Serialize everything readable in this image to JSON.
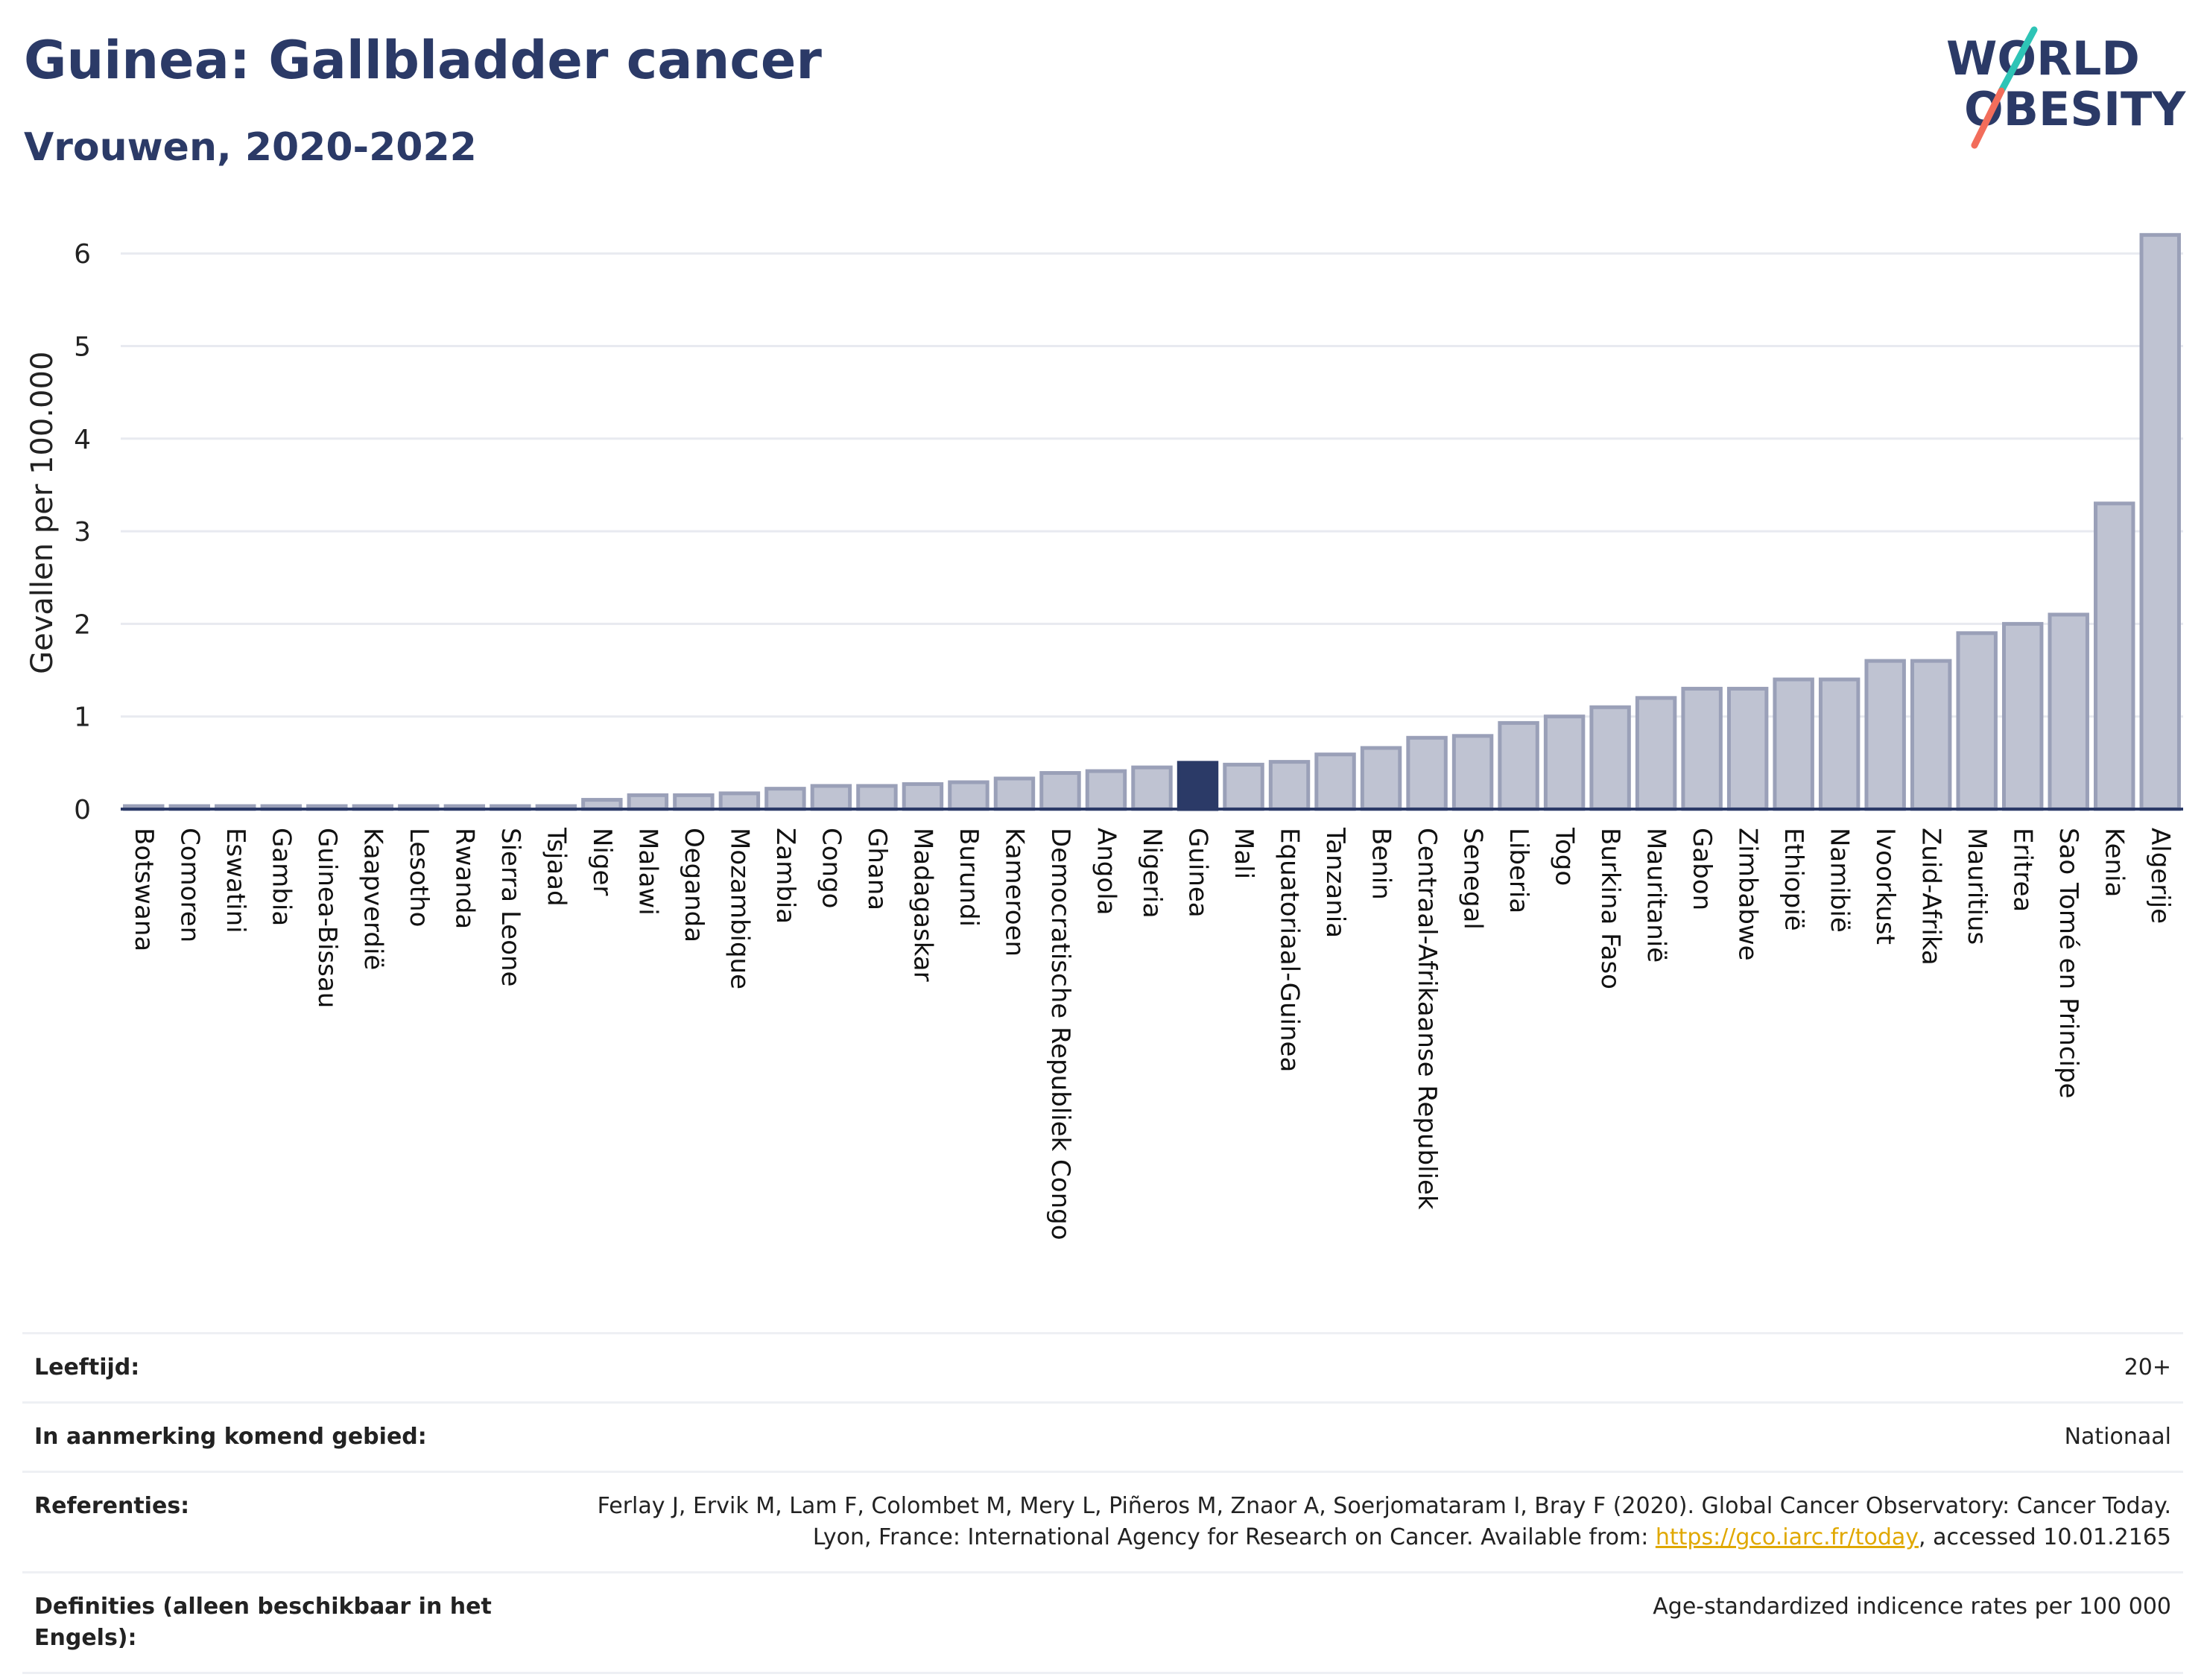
{
  "header": {
    "title": "Guinea: Gallbladder cancer",
    "subtitle": "Vrouwen, 2020-2022"
  },
  "logo": {
    "line1": "WORLD",
    "line2": "OBESITY",
    "colors": {
      "text": "#2b3a67",
      "slash_top": "#2ec4b6",
      "slash_bottom": "#f26d5b"
    }
  },
  "chart_data": {
    "type": "bar",
    "ylabel": "Gevallen per 100.000",
    "ylim": [
      0,
      6.4
    ],
    "yticks": [
      0,
      1,
      2,
      3,
      4,
      5,
      6
    ],
    "grid": true,
    "highlight": "Guinea",
    "colors": {
      "bar": "#bfc3d2",
      "bar_border": "#9aa0b8",
      "highlight": "#2b3a67",
      "axis": "#2b3a67",
      "grid": "#e8eaf0"
    },
    "categories": [
      "Botswana",
      "Comoren",
      "Eswatini",
      "Gambia",
      "Guinea-Bissau",
      "Kaapverdië",
      "Lesotho",
      "Rwanda",
      "Sierra Leone",
      "Tsjaad",
      "Niger",
      "Malawi",
      "Oeganda",
      "Mozambique",
      "Zambia",
      "Congo",
      "Ghana",
      "Madagaskar",
      "Burundi",
      "Kameroen",
      "Democratische Republiek Congo",
      "Angola",
      "Nigeria",
      "Guinea",
      "Mali",
      "Equatoriaal-Guinea",
      "Tanzania",
      "Benin",
      "Centraal-Afrikaanse Republiek",
      "Senegal",
      "Liberia",
      "Togo",
      "Burkina Faso",
      "Mauritanië",
      "Gabon",
      "Zimbabwe",
      "Ethiopië",
      "Namibië",
      "Ivoorkust",
      "Zuid-Afrika",
      "Mauritius",
      "Eritrea",
      "Sao Tomé en Principe",
      "Kenia",
      "Algerije"
    ],
    "values": [
      0.03,
      0.03,
      0.03,
      0.03,
      0.03,
      0.03,
      0.03,
      0.03,
      0.03,
      0.03,
      0.1,
      0.15,
      0.15,
      0.17,
      0.22,
      0.25,
      0.25,
      0.27,
      0.29,
      0.33,
      0.39,
      0.41,
      0.45,
      0.5,
      0.48,
      0.51,
      0.59,
      0.66,
      0.77,
      0.79,
      0.93,
      1.0,
      1.1,
      1.2,
      1.3,
      1.3,
      1.4,
      1.4,
      1.6,
      1.6,
      1.9,
      2.0,
      2.1,
      3.3,
      6.2
    ]
  },
  "info": {
    "rows": [
      {
        "key": "Leeftijd:",
        "value": "20+"
      },
      {
        "key": "In aanmerking komend gebied:",
        "value": "Nationaal"
      },
      {
        "key": "Referenties:",
        "value_pre": "Ferlay J, Ervik M, Lam F, Colombet M, Mery L, Piñeros M, Znaor A, Soerjomataram I, Bray F (2020). Global Cancer Observatory: Cancer Today. Lyon, France: International Agency for Research on Cancer. Available from: ",
        "link": "https://gco.iarc.fr/today",
        "value_post": ", accessed 10.01.2165"
      },
      {
        "key": "Definities (alleen beschikbaar in het Engels):",
        "value": "Age-standardized indicence rates per 100 000"
      }
    ]
  }
}
